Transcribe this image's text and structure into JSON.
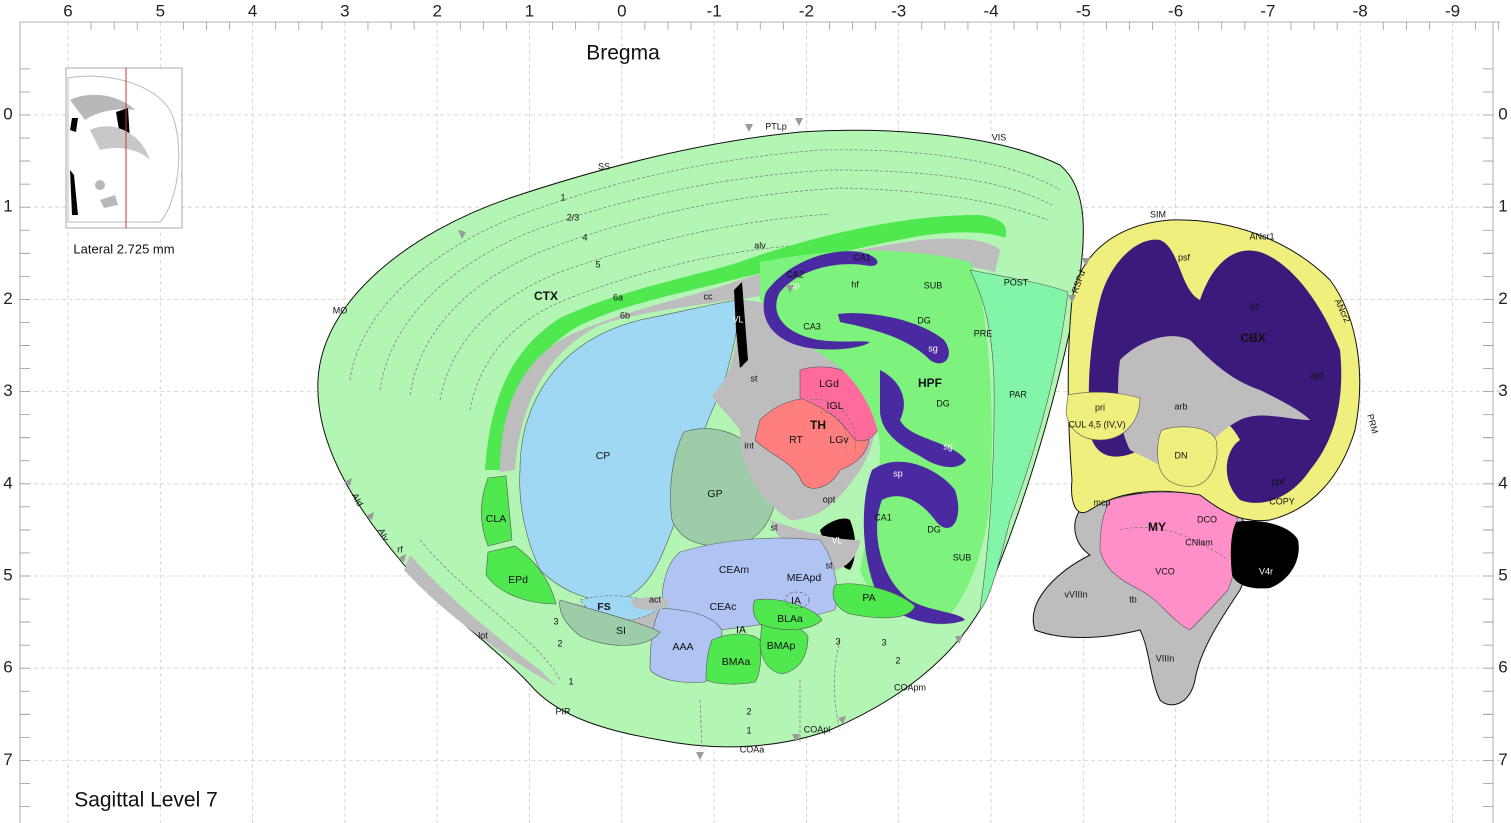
{
  "title": "Bregma",
  "level": "Sagittal Level 7",
  "inset": {
    "lateral": "Lateral 2.725 mm"
  },
  "axis": {
    "x_ticks": [
      "6",
      "5",
      "4",
      "3",
      "2",
      "1",
      "0",
      "-1",
      "-2",
      "-3",
      "-4",
      "-5",
      "-6",
      "-7",
      "-8",
      "-9"
    ],
    "y_ticks": [
      "0",
      "1",
      "2",
      "3",
      "4",
      "5",
      "6",
      "7"
    ]
  },
  "colors": {
    "isocortex": "#b3f5b3",
    "cortical_plate": "#4fe84f",
    "hippocampus": "#7df27d",
    "retro": "#83f5a8",
    "fiber": "#bdbdbd",
    "striatum": "#9fd8f3",
    "pallidum": "#9ccca8",
    "thalamus": "#ff7f7f",
    "thalamus_light": "#ff6b9d",
    "amygdala": "#b0c4f3",
    "cerebellum": "#efef7d",
    "cerebellum_gran": "#3a1a7a",
    "medulla": "#ff8fc8",
    "ventricle": "#000000"
  },
  "regions": {
    "CTX": "CTX",
    "HPF": "HPF",
    "TH": "TH",
    "CBX": "CBX",
    "MY": "MY",
    "CP": "CP",
    "GP": "GP",
    "CLA": "CLA",
    "EPd": "EPd",
    "FS": "FS",
    "SI": "SI",
    "AAA": "AAA",
    "CEAm": "CEAm",
    "CEAc": "CEAc",
    "IA": "IA",
    "IA2": "IA",
    "MEApd": "MEApd",
    "BLAa": "BLAa",
    "BMAa": "BMAa",
    "BMAp": "BMAp",
    "PA": "PA",
    "act": "act",
    "RT": "RT",
    "LGd": "LGd",
    "IGL": "IGL",
    "LGv": "LGv",
    "CA1": "CA1",
    "CA1b": "CA1",
    "CA2": "CA2",
    "CA3": "CA3",
    "DG1": "DG",
    "DG2": "DG",
    "DG3": "DG",
    "SUB": "SUB",
    "SUB2": "SUB",
    "POST": "POST",
    "PRE": "PRE",
    "PAR": "PAR",
    "DCO": "DCO",
    "VCO": "VCO",
    "CNlam": "CNlam",
    "V4r": "V4r",
    "DN": "DN",
    "VL": "VL",
    "VL2": "VL",
    "CUL": "CUL 4,5 (IV,V)",
    "arb": "arb",
    "pri": "pri",
    "psf": "psf",
    "icf": "icf",
    "apf": "apf",
    "ppf": "ppf",
    "mcp": "mcp",
    "tb": "tb",
    "vVIIIn": "vVIIIn",
    "VIIIn": "VIIIn"
  },
  "fibers": {
    "alv": "alv",
    "cc": "cc",
    "fi": "fi",
    "st": "st",
    "st2": "st",
    "st3": "st",
    "int": "int",
    "opt": "opt",
    "hf": "hf",
    "sp": "sp",
    "sp2": "sp",
    "sg": "sg",
    "sg2": "sg",
    "lot": "lot",
    "rf": "rf"
  },
  "layers": {
    "l1": "1",
    "l23": "2/3",
    "l4": "4",
    "l5": "5",
    "l6a": "6a",
    "l6b": "6b",
    "p1": "1",
    "p2": "2",
    "p3": "3",
    "c1": "1",
    "c2": "2",
    "c3": "3",
    "d2": "2",
    "d3": "3"
  },
  "borders": {
    "SS": "SS",
    "PTLp": "PTLp",
    "VIS": "VIS",
    "MO": "MO",
    "RSPd": "RSPd",
    "AId": "AId",
    "AIv": "AIv",
    "PIR": "PIR",
    "COAa": "COAa",
    "COApl": "COApl",
    "COApm": "COApm",
    "SIM": "SIM",
    "ANcr1": "ANcr1",
    "ANcr2": "ANcr2",
    "PRM": "PRM",
    "COPY": "COPY"
  }
}
